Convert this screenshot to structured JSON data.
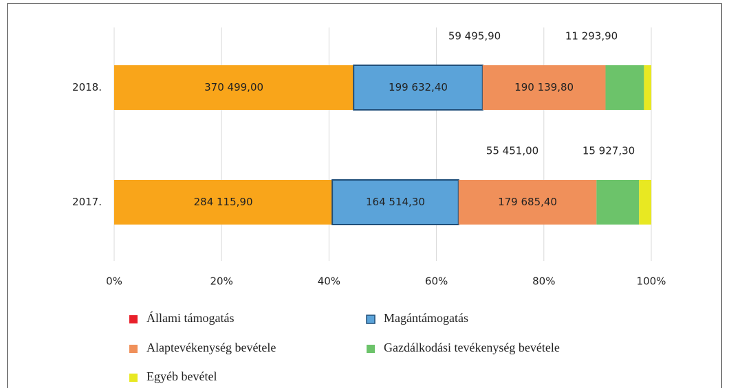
{
  "chart_data": {
    "type": "bar_stacked_percent",
    "categories": [
      "2018.",
      "2017."
    ],
    "series": [
      {
        "name": "Állami támogatás",
        "color": "#f9a51a",
        "legend_color": "#e8202a",
        "values": [
          370499.0,
          284115.9
        ],
        "value_labels": [
          "370 499,00",
          "284 115,90"
        ]
      },
      {
        "name": "Magántámogatás",
        "color": "#5ba3d9",
        "legend_color": "#5ba3d9",
        "values": [
          199632.4,
          164514.3
        ],
        "value_labels": [
          "199 632,40",
          "164 514,30"
        ]
      },
      {
        "name": "Alaptevékenység bevétele",
        "color": "#f0905a",
        "legend_color": "#f0905a",
        "values": [
          190139.8,
          179685.4
        ],
        "value_labels": [
          "190 139,80",
          "179 685,40"
        ]
      },
      {
        "name": "Gazdálkodási tevékenység bevétele",
        "color": "#6cc36a",
        "legend_color": "#6cc36a",
        "values": [
          59495.9,
          55451.0
        ],
        "value_labels": [
          "59 495,90",
          "55 451,00"
        ]
      },
      {
        "name": "Egyéb bevétel",
        "color": "#e8e822",
        "legend_color": "#e8e822",
        "values": [
          11293.9,
          15927.3
        ],
        "value_labels": [
          "11 293,90",
          "15 927,30"
        ]
      }
    ],
    "xlim": [
      0,
      100
    ],
    "xticks": [
      {
        "value": 0,
        "label": "0%"
      },
      {
        "value": 20,
        "label": "20%"
      },
      {
        "value": 40,
        "label": "40%"
      },
      {
        "value": 60,
        "label": "60%"
      },
      {
        "value": 80,
        "label": "80%"
      },
      {
        "value": 100,
        "label": "100%"
      }
    ],
    "grid": true
  }
}
